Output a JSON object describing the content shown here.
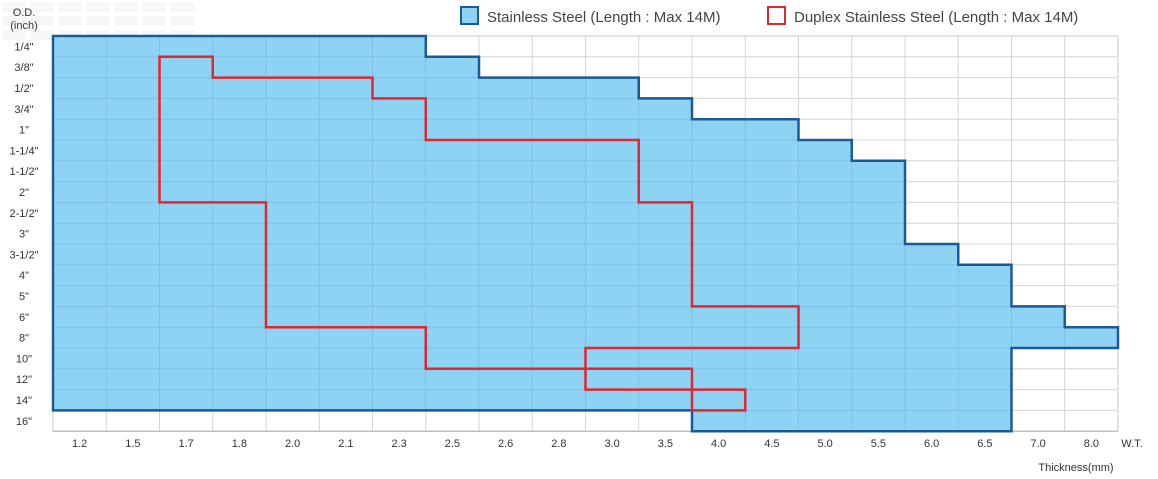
{
  "chart_data": {
    "type": "table",
    "y_title_line1": "O.D.",
    "y_title_line2": "(inch)",
    "x_unit": "W.T.",
    "x_title": "Thickness(mm)",
    "od_sizes": [
      "1/4\"",
      "3/8\"",
      "1/2\"",
      "3/4\"",
      "1\"",
      "1-1/4\"",
      "1-1/2\"",
      "2\"",
      "2-1/2\"",
      "3\"",
      "3-1/2\"",
      "4\"",
      "5\"",
      "6\"",
      "8\"",
      "10\"",
      "12\"",
      "14\"",
      "16\""
    ],
    "thicknesses": [
      "1.2",
      "1.5",
      "1.7",
      "1.8",
      "2.0",
      "2.1",
      "2.3",
      "2.5",
      "2.6",
      "2.8",
      "3.0",
      "3.5",
      "4.0",
      "4.5",
      "5.0",
      "5.5",
      "6.0",
      "6.5",
      "7.0",
      "8.0"
    ],
    "series": [
      {
        "name": "Stainless Steel (Length : Max 14M)",
        "color": "#1a5a96",
        "fill": "#8fd3f4",
        "thickness_range_by_od": [
          [
            "1.2",
            "2.3"
          ],
          [
            "1.2",
            "2.5"
          ],
          [
            "1.2",
            "3.0"
          ],
          [
            "1.2",
            "3.5"
          ],
          [
            "1.2",
            "4.5"
          ],
          [
            "1.2",
            "5.0"
          ],
          [
            "1.2",
            "5.5"
          ],
          [
            "1.2",
            "5.5"
          ],
          [
            "1.2",
            "5.5"
          ],
          [
            "1.2",
            "5.5"
          ],
          [
            "1.2",
            "6.0"
          ],
          [
            "1.2",
            "6.5"
          ],
          [
            "1.2",
            "6.5"
          ],
          [
            "1.2",
            "7.0"
          ],
          [
            "1.2",
            "8.0"
          ],
          [
            "1.2",
            "6.5"
          ],
          [
            "1.2",
            "6.5"
          ],
          [
            "1.2",
            "6.5"
          ],
          [
            "4.0",
            "6.5"
          ]
        ]
      },
      {
        "name": "Duplex Stainless Steel (Length : Max 14M)",
        "color": "#e0262e",
        "thickness_range_by_od": [
          null,
          [
            "1.7",
            "1.7"
          ],
          [
            "1.7",
            "2.1"
          ],
          [
            "1.7",
            "2.3"
          ],
          [
            "1.7",
            "2.3"
          ],
          [
            "1.7",
            "3.0"
          ],
          [
            "1.7",
            "3.0"
          ],
          [
            "1.7",
            "3.0"
          ],
          [
            "2.0",
            "3.5"
          ],
          [
            "2.0",
            "3.5"
          ],
          [
            "2.0",
            "3.5"
          ],
          [
            "2.0",
            "3.5"
          ],
          [
            "2.0",
            "3.5"
          ],
          [
            "2.0",
            "4.5"
          ],
          [
            "2.5",
            "4.5"
          ],
          [
            "2.5",
            "2.8"
          ],
          [
            "3.0",
            "3.5"
          ],
          [
            "4.0",
            "4.0"
          ],
          null
        ]
      }
    ],
    "grid": true,
    "legend_position": "top-right"
  }
}
